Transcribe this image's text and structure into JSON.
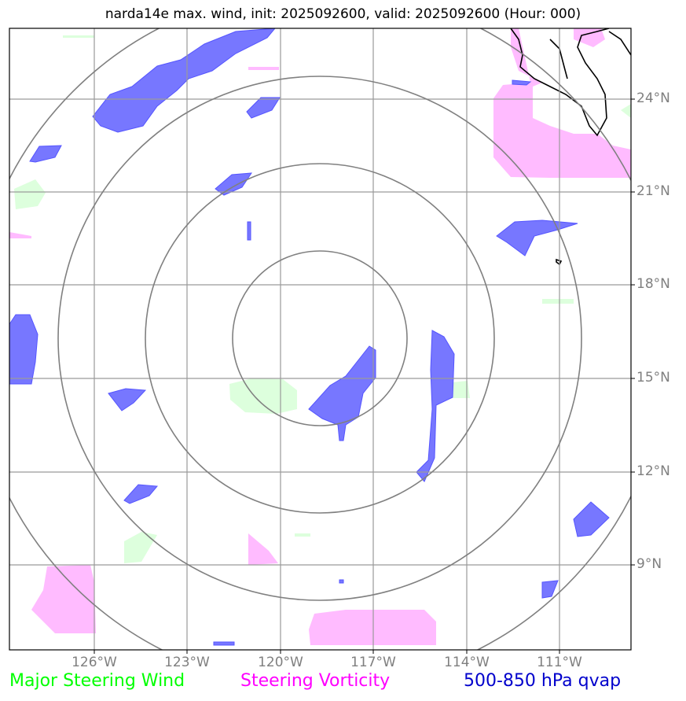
{
  "title": "narda14e max. wind, init: 2025092600, valid: 2025092600 (Hour: 000)",
  "axes": {
    "lat_labels": [
      "24°N",
      "21°N",
      "18°N",
      "15°N",
      "12°N",
      "9°N"
    ],
    "lon_labels": [
      "126°W",
      "123°W",
      "120°W",
      "117°W",
      "114°W",
      "111°W"
    ],
    "grid_color": "#9a9a9a"
  },
  "legend": {
    "wind": {
      "label": "Major Steering Wind",
      "color": "#00ff00"
    },
    "vorticity": {
      "label": "Steering Vorticity",
      "color": "#ff00ff"
    },
    "qvap": {
      "label": "500-850 hPa qvap",
      "color": "#0000cc"
    }
  },
  "overlays": {
    "range_rings": "gray concentric circles centered on storm",
    "colors": {
      "qvap_fill": "#7777ff",
      "vorticity_fill": "#ffbbff",
      "wind_fill": "#ddffdd",
      "coastline": "#000000"
    }
  }
}
